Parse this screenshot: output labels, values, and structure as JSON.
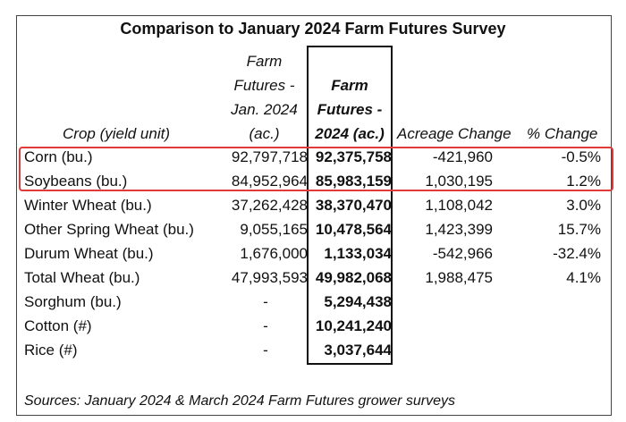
{
  "title": "Comparison to January 2024 Farm Futures Survey",
  "headers": {
    "crop": "Crop (yield unit)",
    "jan_lines": [
      "Farm",
      "Futures -",
      "Jan. 2024",
      "(ac.)"
    ],
    "v24_lines": [
      "Farm",
      "Futures -",
      "2024 (ac.)"
    ],
    "acreage_change": "Acreage Change",
    "pct_change": "% Change"
  },
  "rows": [
    {
      "crop": "Corn (bu.)",
      "jan": "92,797,718",
      "v24": "92,375,758",
      "ac": "-421,960",
      "pct": "-0.5%"
    },
    {
      "crop": "Soybeans (bu.)",
      "jan": "84,952,964",
      "v24": "85,983,159",
      "ac": "1,030,195",
      "pct": "1.2%"
    },
    {
      "crop": "Winter Wheat (bu.)",
      "jan": "37,262,428",
      "v24": "38,370,470",
      "ac": "1,108,042",
      "pct": "3.0%"
    },
    {
      "crop": "Other Spring Wheat (bu.)",
      "jan": "9,055,165",
      "v24": "10,478,564",
      "ac": "1,423,399",
      "pct": "15.7%"
    },
    {
      "crop": "Durum Wheat (bu.)",
      "jan": "1,676,000",
      "v24": "1,133,034",
      "ac": "-542,966",
      "pct": "-32.4%"
    },
    {
      "crop": "Total Wheat (bu.)",
      "jan": "47,993,593",
      "v24": "49,982,068",
      "ac": "1,988,475",
      "pct": "4.1%"
    },
    {
      "crop": "Sorghum (bu.)",
      "jan": "-",
      "v24": "5,294,438",
      "ac": "",
      "pct": ""
    },
    {
      "crop": "Cotton (#)",
      "jan": "-",
      "v24": "10,241,240",
      "ac": "",
      "pct": ""
    },
    {
      "crop": "Rice (#)",
      "jan": "-",
      "v24": "3,037,644",
      "ac": "",
      "pct": ""
    }
  ],
  "source": "Sources: January 2024 & March 2024 Farm Futures grower surveys",
  "colors": {
    "highlight_red": "#e03a3a",
    "border": "#111111"
  }
}
